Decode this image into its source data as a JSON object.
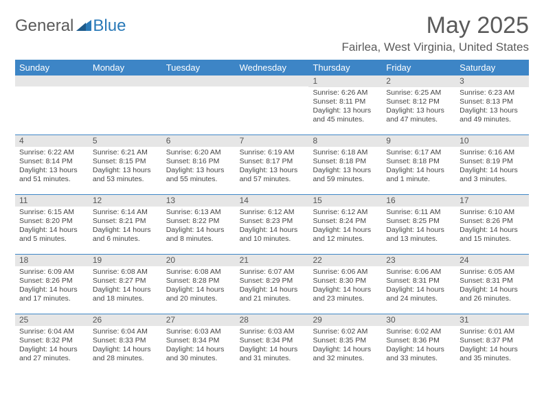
{
  "logo": {
    "general": "General",
    "blue": "Blue"
  },
  "title": "May 2025",
  "location": "Fairlea, West Virginia, United States",
  "day_names": [
    "Sunday",
    "Monday",
    "Tuesday",
    "Wednesday",
    "Thursday",
    "Friday",
    "Saturday"
  ],
  "header_bg": "#3d85c6",
  "date_bg": "#e6e6e6",
  "text_color": "#444444",
  "weeks": [
    [
      null,
      null,
      null,
      null,
      {
        "date": "1",
        "sunrise": "Sunrise: 6:26 AM",
        "sunset": "Sunset: 8:11 PM",
        "daylight": "Daylight: 13 hours and 45 minutes."
      },
      {
        "date": "2",
        "sunrise": "Sunrise: 6:25 AM",
        "sunset": "Sunset: 8:12 PM",
        "daylight": "Daylight: 13 hours and 47 minutes."
      },
      {
        "date": "3",
        "sunrise": "Sunrise: 6:23 AM",
        "sunset": "Sunset: 8:13 PM",
        "daylight": "Daylight: 13 hours and 49 minutes."
      }
    ],
    [
      {
        "date": "4",
        "sunrise": "Sunrise: 6:22 AM",
        "sunset": "Sunset: 8:14 PM",
        "daylight": "Daylight: 13 hours and 51 minutes."
      },
      {
        "date": "5",
        "sunrise": "Sunrise: 6:21 AM",
        "sunset": "Sunset: 8:15 PM",
        "daylight": "Daylight: 13 hours and 53 minutes."
      },
      {
        "date": "6",
        "sunrise": "Sunrise: 6:20 AM",
        "sunset": "Sunset: 8:16 PM",
        "daylight": "Daylight: 13 hours and 55 minutes."
      },
      {
        "date": "7",
        "sunrise": "Sunrise: 6:19 AM",
        "sunset": "Sunset: 8:17 PM",
        "daylight": "Daylight: 13 hours and 57 minutes."
      },
      {
        "date": "8",
        "sunrise": "Sunrise: 6:18 AM",
        "sunset": "Sunset: 8:18 PM",
        "daylight": "Daylight: 13 hours and 59 minutes."
      },
      {
        "date": "9",
        "sunrise": "Sunrise: 6:17 AM",
        "sunset": "Sunset: 8:18 PM",
        "daylight": "Daylight: 14 hours and 1 minute."
      },
      {
        "date": "10",
        "sunrise": "Sunrise: 6:16 AM",
        "sunset": "Sunset: 8:19 PM",
        "daylight": "Daylight: 14 hours and 3 minutes."
      }
    ],
    [
      {
        "date": "11",
        "sunrise": "Sunrise: 6:15 AM",
        "sunset": "Sunset: 8:20 PM",
        "daylight": "Daylight: 14 hours and 5 minutes."
      },
      {
        "date": "12",
        "sunrise": "Sunrise: 6:14 AM",
        "sunset": "Sunset: 8:21 PM",
        "daylight": "Daylight: 14 hours and 6 minutes."
      },
      {
        "date": "13",
        "sunrise": "Sunrise: 6:13 AM",
        "sunset": "Sunset: 8:22 PM",
        "daylight": "Daylight: 14 hours and 8 minutes."
      },
      {
        "date": "14",
        "sunrise": "Sunrise: 6:12 AM",
        "sunset": "Sunset: 8:23 PM",
        "daylight": "Daylight: 14 hours and 10 minutes."
      },
      {
        "date": "15",
        "sunrise": "Sunrise: 6:12 AM",
        "sunset": "Sunset: 8:24 PM",
        "daylight": "Daylight: 14 hours and 12 minutes."
      },
      {
        "date": "16",
        "sunrise": "Sunrise: 6:11 AM",
        "sunset": "Sunset: 8:25 PM",
        "daylight": "Daylight: 14 hours and 13 minutes."
      },
      {
        "date": "17",
        "sunrise": "Sunrise: 6:10 AM",
        "sunset": "Sunset: 8:26 PM",
        "daylight": "Daylight: 14 hours and 15 minutes."
      }
    ],
    [
      {
        "date": "18",
        "sunrise": "Sunrise: 6:09 AM",
        "sunset": "Sunset: 8:26 PM",
        "daylight": "Daylight: 14 hours and 17 minutes."
      },
      {
        "date": "19",
        "sunrise": "Sunrise: 6:08 AM",
        "sunset": "Sunset: 8:27 PM",
        "daylight": "Daylight: 14 hours and 18 minutes."
      },
      {
        "date": "20",
        "sunrise": "Sunrise: 6:08 AM",
        "sunset": "Sunset: 8:28 PM",
        "daylight": "Daylight: 14 hours and 20 minutes."
      },
      {
        "date": "21",
        "sunrise": "Sunrise: 6:07 AM",
        "sunset": "Sunset: 8:29 PM",
        "daylight": "Daylight: 14 hours and 21 minutes."
      },
      {
        "date": "22",
        "sunrise": "Sunrise: 6:06 AM",
        "sunset": "Sunset: 8:30 PM",
        "daylight": "Daylight: 14 hours and 23 minutes."
      },
      {
        "date": "23",
        "sunrise": "Sunrise: 6:06 AM",
        "sunset": "Sunset: 8:31 PM",
        "daylight": "Daylight: 14 hours and 24 minutes."
      },
      {
        "date": "24",
        "sunrise": "Sunrise: 6:05 AM",
        "sunset": "Sunset: 8:31 PM",
        "daylight": "Daylight: 14 hours and 26 minutes."
      }
    ],
    [
      {
        "date": "25",
        "sunrise": "Sunrise: 6:04 AM",
        "sunset": "Sunset: 8:32 PM",
        "daylight": "Daylight: 14 hours and 27 minutes."
      },
      {
        "date": "26",
        "sunrise": "Sunrise: 6:04 AM",
        "sunset": "Sunset: 8:33 PM",
        "daylight": "Daylight: 14 hours and 28 minutes."
      },
      {
        "date": "27",
        "sunrise": "Sunrise: 6:03 AM",
        "sunset": "Sunset: 8:34 PM",
        "daylight": "Daylight: 14 hours and 30 minutes."
      },
      {
        "date": "28",
        "sunrise": "Sunrise: 6:03 AM",
        "sunset": "Sunset: 8:34 PM",
        "daylight": "Daylight: 14 hours and 31 minutes."
      },
      {
        "date": "29",
        "sunrise": "Sunrise: 6:02 AM",
        "sunset": "Sunset: 8:35 PM",
        "daylight": "Daylight: 14 hours and 32 minutes."
      },
      {
        "date": "30",
        "sunrise": "Sunrise: 6:02 AM",
        "sunset": "Sunset: 8:36 PM",
        "daylight": "Daylight: 14 hours and 33 minutes."
      },
      {
        "date": "31",
        "sunrise": "Sunrise: 6:01 AM",
        "sunset": "Sunset: 8:37 PM",
        "daylight": "Daylight: 14 hours and 35 minutes."
      }
    ]
  ]
}
